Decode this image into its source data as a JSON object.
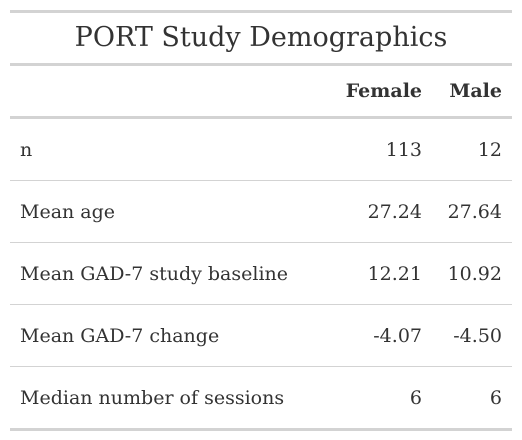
{
  "table": {
    "title": "PORT Study Demographics",
    "columns": [
      "",
      "Female",
      "Male"
    ],
    "rows": [
      {
        "label": "n",
        "female": "113",
        "male": "12"
      },
      {
        "label": "Mean age",
        "female": "27.24",
        "male": "27.64"
      },
      {
        "label": "Mean GAD-7 study baseline",
        "female": "12.21",
        "male": "10.92"
      },
      {
        "label": "Mean GAD-7 change",
        "female": "-4.07",
        "male": "-4.50"
      },
      {
        "label": "Median number of sessions",
        "female": "6",
        "male": "6"
      }
    ]
  },
  "colors": {
    "text": "#333333",
    "rule": "#d3d3d3",
    "background": "#ffffff"
  }
}
